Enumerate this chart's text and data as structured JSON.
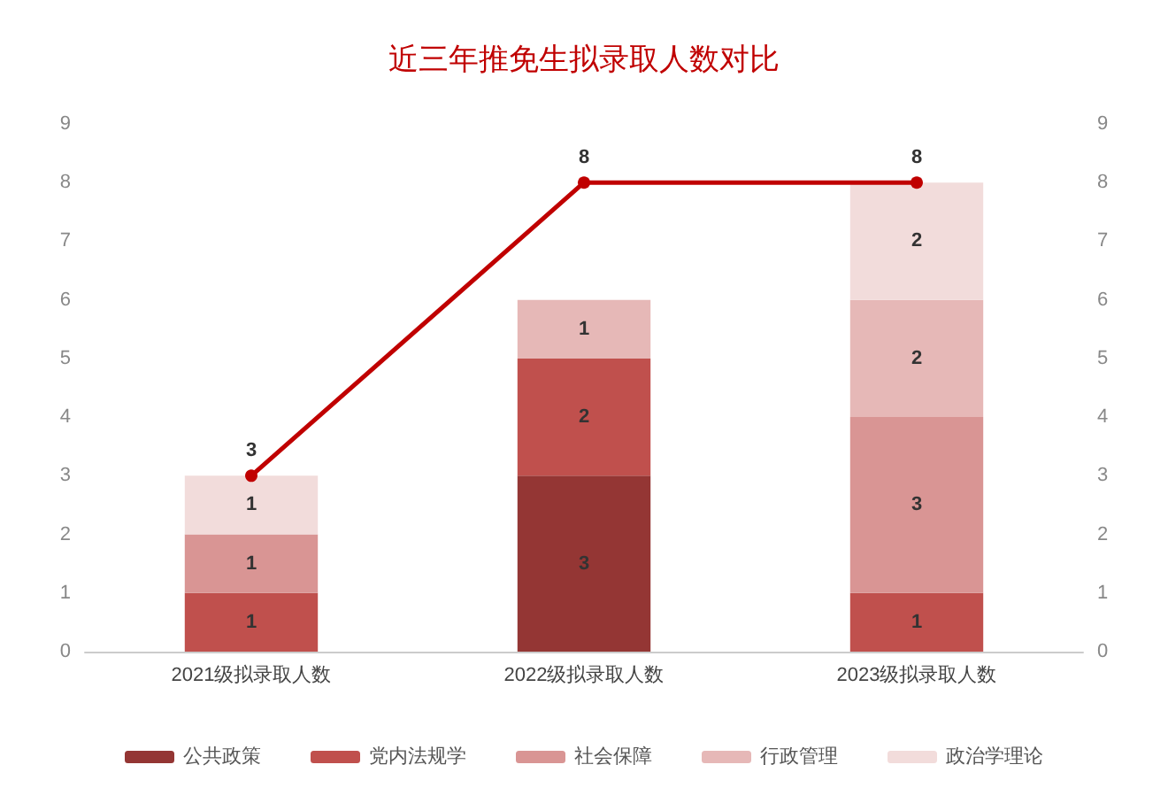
{
  "chart_data": {
    "type": "bar",
    "title": "近三年推免生拟录取人数对比",
    "categories": [
      "2021级拟录取人数",
      "2022级拟录取人数",
      "2023级拟录取人数"
    ],
    "stacked": true,
    "data_labels": true,
    "grid": false,
    "legend": "bottom",
    "marker": "circle",
    "ylim": [
      0,
      9
    ],
    "yticks": [
      0,
      1,
      2,
      3,
      4,
      5,
      6,
      7,
      8,
      9
    ],
    "y2lim": [
      0,
      9
    ],
    "y2ticks": [
      0,
      1,
      2,
      3,
      4,
      5,
      6,
      7,
      8,
      9
    ],
    "series": [
      {
        "name": "公共政策",
        "color": "#943634",
        "values": [
          null,
          3,
          null
        ]
      },
      {
        "name": "党内法规学",
        "color": "#c0504d",
        "values": [
          1,
          2,
          1
        ]
      },
      {
        "name": "社会保障",
        "color": "#d99594",
        "values": [
          1,
          null,
          3
        ]
      },
      {
        "name": "行政管理",
        "color": "#e6b8b7",
        "values": [
          null,
          1,
          2
        ]
      },
      {
        "name": "政治学理论",
        "color": "#f2dcdb",
        "values": [
          1,
          null,
          2
        ]
      },
      {
        "type": "line",
        "color": "#c00000",
        "values": [
          3,
          8,
          8
        ]
      }
    ]
  }
}
